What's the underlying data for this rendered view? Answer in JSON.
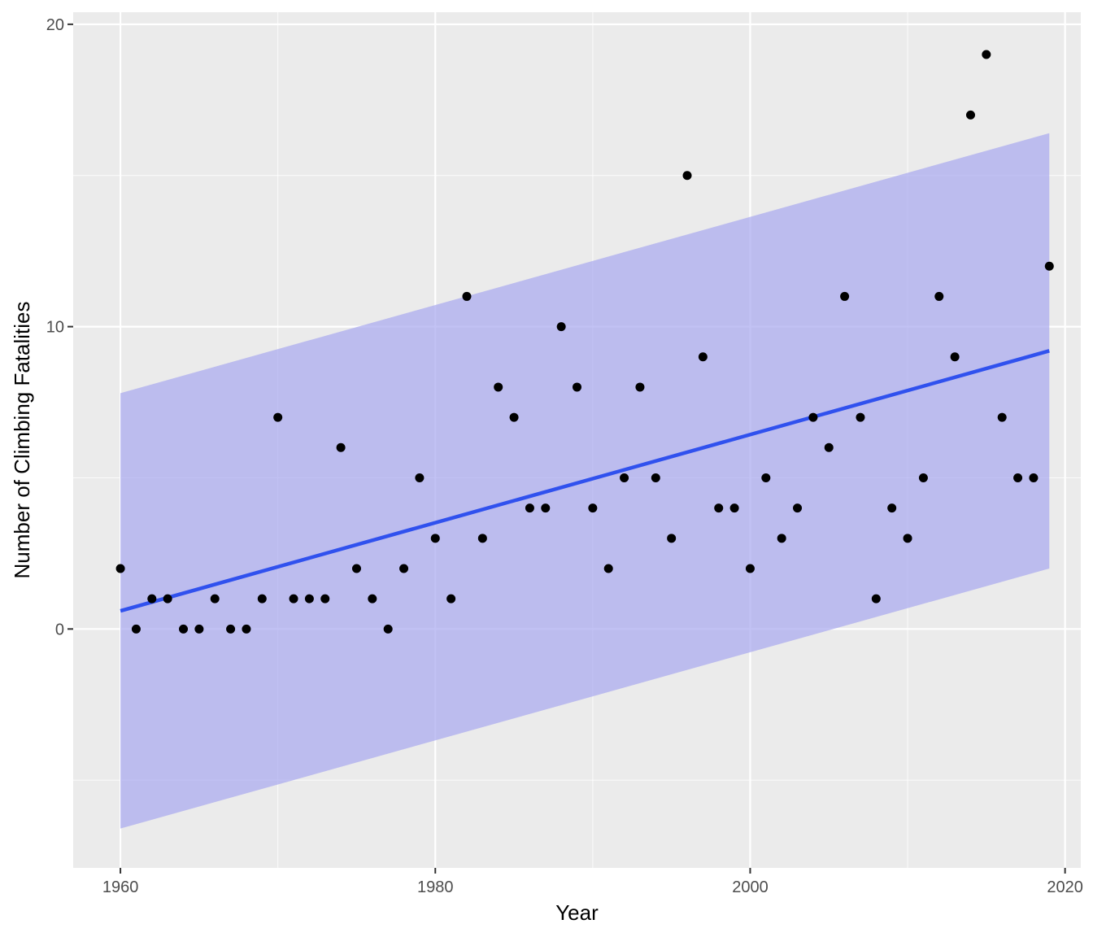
{
  "chart_data": {
    "type": "scatter",
    "xlabel": "Year",
    "ylabel": "Number of Climbing Fatalities",
    "xlim": [
      1957,
      2021
    ],
    "ylim": [
      -7.9,
      20.4
    ],
    "x_ticks": [
      1960,
      1980,
      2000,
      2020
    ],
    "y_ticks": [
      0,
      10,
      20
    ],
    "x_minor": [
      1970,
      1990,
      2010
    ],
    "y_minor": [
      -5,
      5,
      15
    ],
    "grid": true,
    "series": [
      {
        "type": "scatter",
        "points": [
          [
            1960,
            2
          ],
          [
            1961,
            0
          ],
          [
            1962,
            1
          ],
          [
            1963,
            1
          ],
          [
            1964,
            0
          ],
          [
            1965,
            0
          ],
          [
            1966,
            1
          ],
          [
            1967,
            0
          ],
          [
            1968,
            0
          ],
          [
            1969,
            1
          ],
          [
            1970,
            7
          ],
          [
            1971,
            1
          ],
          [
            1972,
            1
          ],
          [
            1973,
            1
          ],
          [
            1974,
            6
          ],
          [
            1975,
            2
          ],
          [
            1976,
            1
          ],
          [
            1977,
            0
          ],
          [
            1978,
            2
          ],
          [
            1979,
            5
          ],
          [
            1980,
            3
          ],
          [
            1981,
            1
          ],
          [
            1982,
            11
          ],
          [
            1983,
            3
          ],
          [
            1984,
            8
          ],
          [
            1985,
            7
          ],
          [
            1986,
            4
          ],
          [
            1987,
            4
          ],
          [
            1988,
            10
          ],
          [
            1989,
            8
          ],
          [
            1990,
            4
          ],
          [
            1991,
            2
          ],
          [
            1992,
            5
          ],
          [
            1993,
            8
          ],
          [
            1994,
            5
          ],
          [
            1995,
            3
          ],
          [
            1996,
            15
          ],
          [
            1997,
            9
          ],
          [
            1998,
            4
          ],
          [
            1999,
            4
          ],
          [
            2000,
            2
          ],
          [
            2001,
            5
          ],
          [
            2002,
            3
          ],
          [
            2003,
            4
          ],
          [
            2004,
            7
          ],
          [
            2005,
            6
          ],
          [
            2006,
            11
          ],
          [
            2007,
            7
          ],
          [
            2008,
            1
          ],
          [
            2009,
            4
          ],
          [
            2010,
            3
          ],
          [
            2011,
            5
          ],
          [
            2012,
            11
          ],
          [
            2013,
            9
          ],
          [
            2014,
            17
          ],
          [
            2015,
            19
          ],
          [
            2016,
            7
          ],
          [
            2017,
            5
          ],
          [
            2018,
            5
          ],
          [
            2019,
            12
          ]
        ]
      },
      {
        "type": "line",
        "points": [
          [
            1960,
            0.6
          ],
          [
            2019,
            9.2
          ]
        ]
      },
      {
        "type": "area",
        "x": [
          1960,
          2019
        ],
        "lower": [
          -6.6,
          2.0
        ],
        "upper": [
          7.8,
          16.4
        ]
      }
    ],
    "colors": {
      "panel": "#ebebeb",
      "grid_major": "#ffffff",
      "points": "#000000",
      "fit_line": "#3051ee",
      "band": "#a8a8f0"
    }
  }
}
